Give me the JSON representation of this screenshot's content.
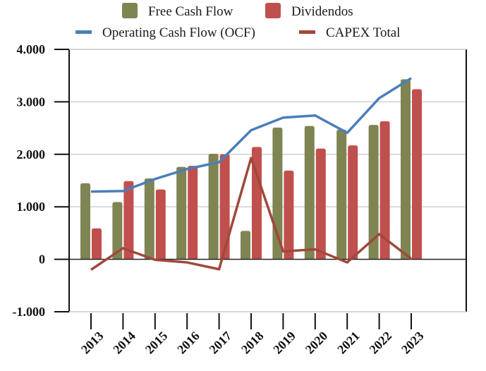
{
  "chart_data": {
    "type": "bar",
    "title": "",
    "xlabel": "",
    "ylabel": "",
    "categories": [
      "2013",
      "2014",
      "2015",
      "2016",
      "2017",
      "2018",
      "2019",
      "2020",
      "2021",
      "2022",
      "2023"
    ],
    "ylim": [
      -1000,
      4000
    ],
    "yticks": [
      4000,
      3000,
      2000,
      1000,
      0,
      -1000
    ],
    "ytick_labels": [
      "4.000",
      "3.000",
      "2.000",
      "1.000",
      "0",
      "-1.000"
    ],
    "grid": true,
    "legend_position": "top",
    "series": [
      {
        "name": "Free Cash Flow",
        "kind": "bar",
        "color": "#7f8453",
        "values": [
          1450,
          1090,
          1540,
          1760,
          2010,
          540,
          2510,
          2540,
          2470,
          2560,
          3430
        ]
      },
      {
        "name": "Dividendos",
        "kind": "bar",
        "color": "#c0504d",
        "values": [
          590,
          1490,
          1330,
          1780,
          2000,
          2140,
          1690,
          2110,
          2170,
          2630,
          3240
        ]
      },
      {
        "name": "Operating Cash Flow (OCF)",
        "kind": "line",
        "color": "#4a7ebb",
        "values": [
          1290,
          1300,
          1530,
          1720,
          1850,
          2460,
          2700,
          2740,
          2410,
          3070,
          3450
        ]
      },
      {
        "name": "CAPEX Total",
        "kind": "line",
        "color": "#a0483b",
        "values": [
          -200,
          210,
          -10,
          -60,
          -190,
          1930,
          150,
          190,
          -60,
          480,
          10
        ]
      }
    ]
  }
}
